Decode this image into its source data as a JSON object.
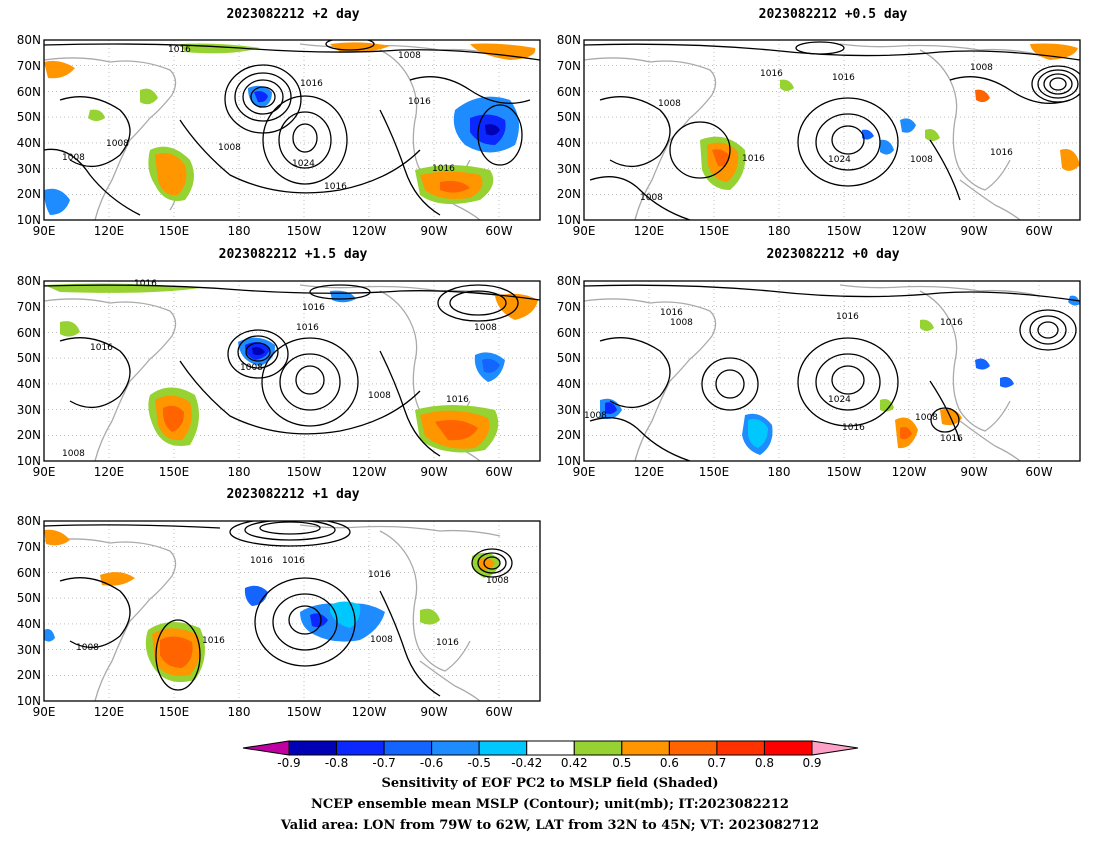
{
  "panels": [
    {
      "id": "p2",
      "title": "2023082212 +2 day",
      "contour_labels": [
        "1016",
        "1008",
        "1016",
        "1016",
        "1008",
        "1008",
        "1008",
        "1024",
        "1016",
        "1016"
      ]
    },
    {
      "id": "p05",
      "title": "2023082212 +0.5 day",
      "contour_labels": [
        "1016",
        "1016",
        "1008",
        "1008",
        "1016",
        "1024",
        "1008",
        "1016",
        "1008"
      ]
    },
    {
      "id": "p15",
      "title": "2023082212 +1.5 day",
      "contour_labels": [
        "1016",
        "1016",
        "1016",
        "1016",
        "1008",
        "1008",
        "1008",
        "1016",
        "1008"
      ]
    },
    {
      "id": "p0",
      "title": "2023082212 +0 day",
      "contour_labels": [
        "1016",
        "1008",
        "1016",
        "1016",
        "1024",
        "1016",
        "1008",
        "1008",
        "1016"
      ]
    },
    {
      "id": "p1",
      "title": "2023082212 +1 day",
      "contour_labels": [
        "1016",
        "1016",
        "1016",
        "1016",
        "1008",
        "1008",
        "1008",
        "1016"
      ]
    }
  ],
  "axes": {
    "lat_labels": [
      "80N",
      "70N",
      "60N",
      "50N",
      "40N",
      "30N",
      "20N",
      "10N"
    ],
    "lon_labels": [
      "90E",
      "120E",
      "150E",
      "180",
      "150W",
      "120W",
      "90W",
      "60W"
    ]
  },
  "colorbar": {
    "colors": [
      "#c000a0",
      "#0000b4",
      "#0a28ff",
      "#1464ff",
      "#1e8cff",
      "#00c8ff",
      "#ffffff",
      "#96d232",
      "#ff9600",
      "#ff6400",
      "#ff3200",
      "#ff0000",
      "#ffa0c8"
    ],
    "labels": [
      "-0.9",
      "-0.8",
      "-0.7",
      "-0.6",
      "-0.5",
      "-0.42",
      "0.42",
      "0.5",
      "0.6",
      "0.7",
      "0.8",
      "0.9"
    ]
  },
  "caption": {
    "line1": "Sensitivity of EOF PC2 to MSLP field (Shaded)",
    "line2": "NCEP ensemble mean MSLP (Contour); unit(mb); IT:2023082212",
    "line3": "Valid area: LON from 79W to 62W, LAT from 32N to 45N; VT: 2023082712"
  }
}
